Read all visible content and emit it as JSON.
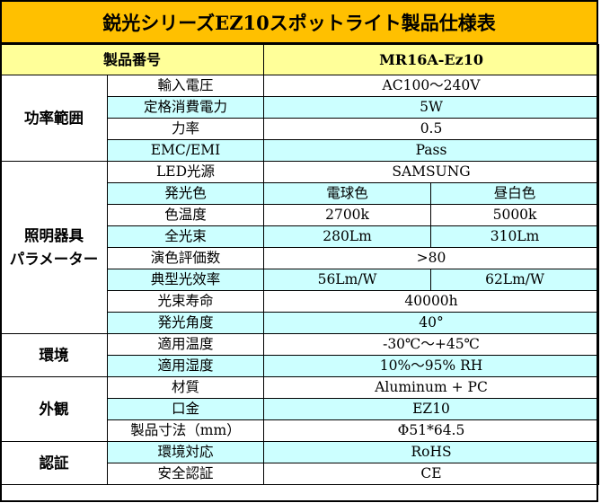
{
  "title": "鋭光シリーズEZ10スポットライト製品仕様表",
  "header": {
    "label": "製品番号",
    "value": "MR16A-Ez10"
  },
  "groups": {
    "power": "功率範囲",
    "lighting": "照明器具\nパラメーター",
    "environment": "環境",
    "appearance": "外観",
    "certification": "認証"
  },
  "rows": {
    "input_voltage": {
      "label": "輸入電圧",
      "value": "AC100～240V"
    },
    "rated_power": {
      "label": "定格消費電力",
      "value": "5W"
    },
    "power_factor": {
      "label": "力率",
      "value": "0.5"
    },
    "emc": {
      "label": "EMC/EMI",
      "value": "Pass"
    },
    "led_source": {
      "label": "LED光源",
      "value": "SAMSUNG"
    },
    "light_color": {
      "label": "発光色",
      "value1": "電球色",
      "value2": "昼白色"
    },
    "color_temp": {
      "label": "色温度",
      "value1": "2700k",
      "value2": "5000k"
    },
    "luminous_flux": {
      "label": "全光束",
      "value1": "280Lm",
      "value2": "310Lm"
    },
    "cri": {
      "label": "演色評価数",
      "value": ">80"
    },
    "efficacy": {
      "label": "典型光效率",
      "value1": "56Lm/W",
      "value2": "62Lm/W"
    },
    "lifetime": {
      "label": "光束寿命",
      "value": "40000h"
    },
    "beam_angle": {
      "label": "発光角度",
      "value": "40°"
    },
    "temperature": {
      "label": "適用温度",
      "value": "-30℃～+45℃"
    },
    "humidity": {
      "label": "適用湿度",
      "value": "10%～95% RH"
    },
    "material": {
      "label": "材質",
      "value": "Aluminum + PC"
    },
    "base": {
      "label": "口金",
      "value": "EZ10"
    },
    "dimensions": {
      "label": "製品寸法（mm）",
      "value": "Φ51*64.5"
    },
    "env_compliance": {
      "label": "環境対応",
      "value": "RoHS"
    },
    "safety": {
      "label": "安全認証",
      "value": "CE"
    }
  }
}
